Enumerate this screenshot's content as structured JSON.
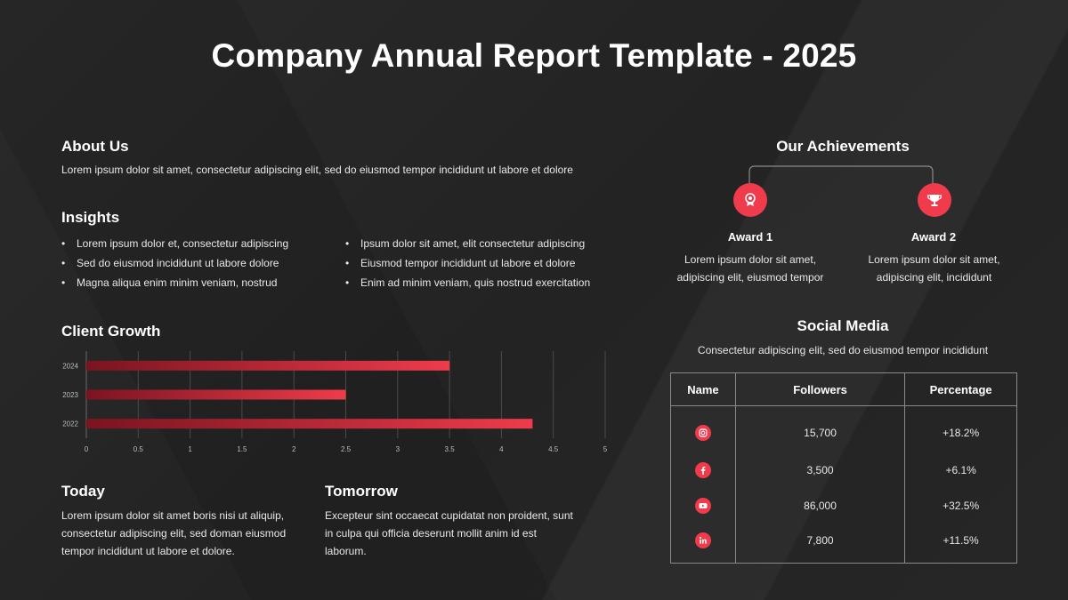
{
  "title": "Company Annual Report Template - 2025",
  "about": {
    "heading": "About Us",
    "text": "Lorem ipsum dolor sit amet, consectetur adipiscing elit, sed do eiusmod tempor incididunt ut labore et dolore"
  },
  "insights": {
    "heading": "Insights",
    "left": [
      "Lorem ipsum dolor et, consectetur adipiscing",
      "Sed do eiusmod incididunt ut labore dolore",
      "Magna aliqua  enim minim veniam, nostrud"
    ],
    "right": [
      "Ipsum dolor sit amet, elit consectetur adipiscing",
      "Eiusmod tempor incididunt ut labore et dolore",
      "Enim ad minim veniam, quis nostrud exercitation"
    ]
  },
  "client_growth": {
    "heading": "Client Growth"
  },
  "chart_data": {
    "type": "bar",
    "orientation": "horizontal",
    "title": "Client Growth",
    "categories": [
      "2024",
      "2023",
      "2022"
    ],
    "values": [
      3.5,
      2.5,
      4.3
    ],
    "xlim": [
      0,
      5
    ],
    "x_ticks": [
      "0",
      "0.5",
      "1",
      "1.5",
      "2",
      "2.5",
      "3",
      "3.5",
      "4",
      "4.5",
      "5"
    ],
    "grid": true,
    "bar_color": "#ef3b4b",
    "bar_color_dark": "#7a1420"
  },
  "today": {
    "heading": "Today",
    "text": "Lorem ipsum dolor sit amet boris nisi ut aliquip, consectetur adipiscing elit, sed doman eiusmod tempor incididunt ut labore et dolore."
  },
  "tomorrow": {
    "heading": "Tomorrow",
    "text": "Excepteur sint occaecat cupidatat non proident, sunt in culpa qui officia deserunt mollit anim id est laborum."
  },
  "achievements": {
    "heading": "Our Achievements",
    "awards": [
      {
        "title": "Award 1",
        "icon": "medal-icon",
        "text": "Lorem ipsum dolor sit amet, adipiscing elit, eiusmod tempor"
      },
      {
        "title": "Award 2",
        "icon": "trophy-icon",
        "text": "Lorem ipsum dolor sit amet, adipiscing elit, incididunt"
      }
    ]
  },
  "social": {
    "heading": "Social Media",
    "subtitle": "Consectetur adipiscing elit, sed do eiusmod tempor incididunt",
    "columns": [
      "Name",
      "Followers",
      "Percentage"
    ],
    "rows": [
      {
        "icon": "instagram-icon",
        "followers": "15,700",
        "percentage": "+18.2%"
      },
      {
        "icon": "facebook-icon",
        "followers": "3,500",
        "percentage": "+6.1%"
      },
      {
        "icon": "youtube-icon",
        "followers": "86,000",
        "percentage": "+32.5%"
      },
      {
        "icon": "linkedin-icon",
        "followers": "7,800",
        "percentage": "+11.5%"
      }
    ]
  },
  "colors": {
    "accent": "#ef3b4b",
    "background": "#222222",
    "text": "#ffffff"
  }
}
